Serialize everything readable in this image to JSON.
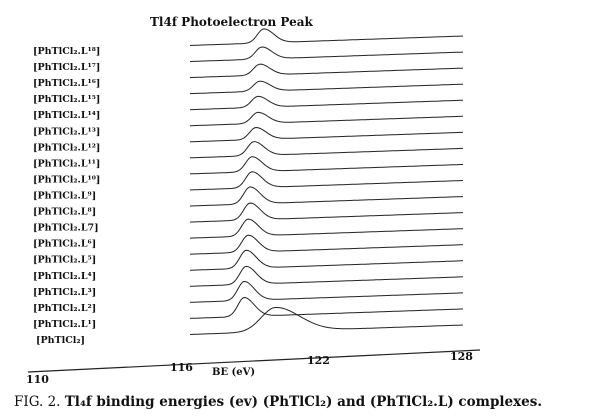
{
  "chart_data": {
    "type": "line",
    "title": "Tl4f Photoelectron Peak",
    "xlabel": "BE (eV)",
    "ylabel": "",
    "xticks": [
      110,
      116,
      122,
      128
    ],
    "xlim": [
      110,
      128
    ],
    "grid": false,
    "stacked_offsets": true,
    "series": [
      {
        "name": "[PhTlCl₂.L¹⁸]",
        "peak_x": 117.8,
        "peak_height": 0.7
      },
      {
        "name": "[PhTlCl₂.L¹⁷]",
        "peak_x": 117.7,
        "peak_height": 0.6
      },
      {
        "name": "[PhTlCl₂.L¹⁶]",
        "peak_x": 117.6,
        "peak_height": 0.55
      },
      {
        "name": "[PhTlCl₂.L¹⁵]",
        "peak_x": 117.6,
        "peak_height": 0.5
      },
      {
        "name": "[PhTlCl₂.L¹⁴]",
        "peak_x": 117.5,
        "peak_height": 0.55
      },
      {
        "name": "[PhTlCl₂.L¹³]",
        "peak_x": 117.5,
        "peak_height": 0.55
      },
      {
        "name": "[PhTlCl₂.L¹²]",
        "peak_x": 117.4,
        "peak_height": 0.6
      },
      {
        "name": "[PhTlCl₂.L¹¹]",
        "peak_x": 117.3,
        "peak_height": 0.7
      },
      {
        "name": "[PhTlCl₂.L¹⁰]",
        "peak_x": 117.2,
        "peak_height": 0.75
      },
      {
        "name": "[PhTlCl₂.L⁹]",
        "peak_x": 117.2,
        "peak_height": 0.8
      },
      {
        "name": "[PhTlCl₂.L⁸]",
        "peak_x": 117.1,
        "peak_height": 0.85
      },
      {
        "name": "[PhTlCl₂.L7]",
        "peak_x": 117.1,
        "peak_height": 0.85
      },
      {
        "name": "[PhTlCl₂.L⁶]",
        "peak_x": 117.0,
        "peak_height": 0.85
      },
      {
        "name": "[PhTlCl₂.L⁵]",
        "peak_x": 117.0,
        "peak_height": 0.85
      },
      {
        "name": "[PhTlCl₂.L⁴]",
        "peak_x": 116.9,
        "peak_height": 0.9
      },
      {
        "name": "[PhTlCl₂.L³]",
        "peak_x": 116.9,
        "peak_height": 0.9
      },
      {
        "name": "[PhTlCl₂.L²]",
        "peak_x": 116.8,
        "peak_height": 0.95
      },
      {
        "name": "[PhTlCl₂.L¹]",
        "peak_x": 116.8,
        "peak_height": 0.95
      },
      {
        "name": "[PhTlCl₂]",
        "peak_x": 118.4,
        "peak_height": 1.2
      }
    ]
  },
  "caption": {
    "prefix": "FIG. 2.",
    "text": "Tl₄f binding energies (ev) (PhTlCl₂) and (PhTlCl₂.L) complexes."
  },
  "colors": {
    "line": "#222222",
    "background": "#ffffff"
  }
}
